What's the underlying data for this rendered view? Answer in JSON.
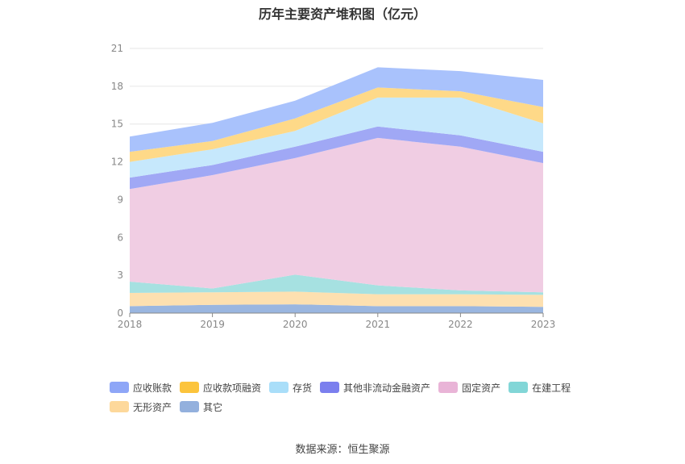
{
  "chart_data": {
    "type": "area",
    "stacked": true,
    "title": "历年主要资产堆积图（亿元）",
    "categories": [
      "2018",
      "2019",
      "2020",
      "2021",
      "2022",
      "2023"
    ],
    "ylim": [
      0,
      21
    ],
    "yticks": [
      0,
      3,
      6,
      9,
      12,
      15,
      18,
      21
    ],
    "grid": true,
    "legend_position": "bottom",
    "series": [
      {
        "name": "其它",
        "color": "#9ab6e0",
        "values": [
          0.55,
          0.65,
          0.7,
          0.55,
          0.55,
          0.5
        ]
      },
      {
        "name": "无形资产",
        "color": "#fde0b0",
        "values": [
          1.05,
          1.0,
          1.0,
          0.95,
          0.95,
          0.95
        ]
      },
      {
        "name": "在建工程",
        "color": "#a6e1e1",
        "values": [
          0.9,
          0.3,
          1.35,
          0.7,
          0.3,
          0.2
        ]
      },
      {
        "name": "固定资产",
        "color": "#f0cde3",
        "values": [
          7.35,
          9.0,
          9.25,
          11.7,
          11.4,
          10.25
        ]
      },
      {
        "name": "其他非流动金融资产",
        "color": "#a0a8f5",
        "values": [
          0.9,
          0.8,
          0.9,
          0.9,
          0.9,
          0.9
        ]
      },
      {
        "name": "存货",
        "color": "#c6e8fc",
        "values": [
          1.25,
          1.25,
          1.25,
          2.3,
          3.0,
          2.25
        ]
      },
      {
        "name": "应收款项融资",
        "color": "#fed988",
        "values": [
          0.8,
          0.65,
          1.0,
          0.8,
          0.5,
          1.3
        ]
      },
      {
        "name": "应收账款",
        "color": "#a9c2fc",
        "values": [
          1.2,
          1.45,
          1.4,
          1.6,
          1.6,
          2.15
        ]
      }
    ]
  },
  "legend": [
    {
      "label": "应收账款",
      "color": "#8ea6f7"
    },
    {
      "label": "应收款项融资",
      "color": "#fcc43c"
    },
    {
      "label": "存货",
      "color": "#a9def9"
    },
    {
      "label": "其他非流动金融资产",
      "color": "#7b7fee"
    },
    {
      "label": "固定资产",
      "color": "#e9b4d7"
    },
    {
      "label": "在建工程",
      "color": "#82d6d7"
    },
    {
      "label": "无形资产",
      "color": "#fdd89b"
    },
    {
      "label": "其它",
      "color": "#93b0dd"
    }
  ],
  "source": "数据来源：恒生聚源"
}
